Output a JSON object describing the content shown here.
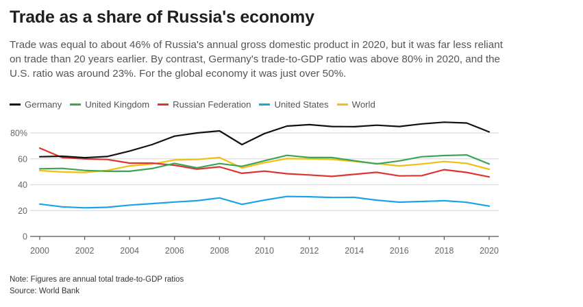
{
  "header": {
    "title": "Trade as a share of Russia's economy",
    "subtitle": "Trade was equal to about 46% of Russia's annual gross domestic product in 2020, but it was far less reliant on trade than 20 years earlier. By contrast, Germany's trade-to-GDP ratio was above 80% in 2020, and the U.S. ratio was around 23%. For the global economy it was just over 50%."
  },
  "footer": {
    "note": "Note: Figures are annual total trade-to-GDP ratios",
    "source": "Source: World Bank"
  },
  "chart_data": {
    "type": "line",
    "title": "Trade as a share of Russia's economy",
    "xlabel": "",
    "ylabel": "",
    "x": [
      2000,
      2001,
      2002,
      2003,
      2004,
      2005,
      2006,
      2007,
      2008,
      2009,
      2010,
      2011,
      2012,
      2013,
      2014,
      2015,
      2016,
      2017,
      2018,
      2019,
      2020
    ],
    "x_ticks": [
      "2000",
      "2002",
      "2004",
      "2006",
      "2008",
      "2010",
      "2012",
      "2014",
      "2016",
      "2018",
      "2020"
    ],
    "y_ticks": [
      "0",
      "20",
      "40",
      "60",
      "80%"
    ],
    "ylim": [
      0,
      80
    ],
    "grid": true,
    "legend_position": "top-left",
    "series": [
      {
        "name": "Germany",
        "color": "#111111",
        "values": [
          61.6,
          62.0,
          60.9,
          61.8,
          66.0,
          71.0,
          77.5,
          80.0,
          81.6,
          71.0,
          79.5,
          85.3,
          86.4,
          85.0,
          84.8,
          86.0,
          85.0,
          87.0,
          88.3,
          87.7,
          80.8
        ]
      },
      {
        "name": "United Kingdom",
        "color": "#3aa655",
        "values": [
          52.3,
          52.6,
          51.0,
          50.4,
          50.4,
          52.5,
          56.5,
          53.0,
          56.3,
          54.2,
          58.5,
          62.7,
          61.0,
          61.0,
          58.5,
          56.1,
          58.4,
          61.6,
          62.5,
          63.0,
          56.0
        ]
      },
      {
        "name": "Russian Federation",
        "color": "#e0322f",
        "values": [
          68.3,
          61.0,
          60.0,
          59.5,
          56.7,
          56.7,
          55.0,
          52.0,
          53.8,
          48.8,
          50.5,
          48.5,
          47.5,
          46.4,
          48.0,
          49.6,
          46.8,
          47.0,
          51.6,
          49.5,
          46.0
        ]
      },
      {
        "name": "United States",
        "color": "#1aa3e8",
        "values": [
          25.0,
          22.9,
          22.1,
          22.5,
          24.2,
          25.4,
          26.6,
          27.6,
          29.8,
          24.8,
          28.1,
          30.9,
          30.7,
          30.1,
          30.2,
          28.0,
          26.5,
          27.0,
          27.6,
          26.4,
          23.4
        ]
      },
      {
        "name": "World",
        "color": "#f4be0f",
        "values": [
          50.9,
          49.8,
          49.5,
          51.0,
          54.5,
          56.0,
          59.1,
          59.5,
          61.0,
          53.0,
          57.0,
          60.2,
          60.0,
          59.6,
          58.0,
          56.3,
          54.5,
          56.0,
          57.9,
          56.5,
          51.9
        ]
      }
    ]
  }
}
